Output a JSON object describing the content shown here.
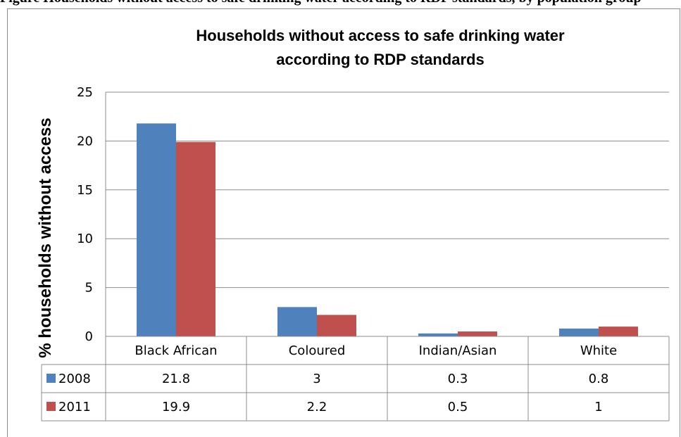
{
  "figure_caption_fragment": "Figure        Households without access to safe drinking water according to RDP standards, by population group",
  "chart_data": {
    "type": "bar",
    "title_line1": "Households without access to safe drinking water",
    "title_line2": "according to RDP standards",
    "title": "Households without access to safe drinking water according to RDP standards",
    "xlabel": "",
    "ylabel": "% households without access",
    "ylim": [
      0,
      25
    ],
    "yticks": [
      0,
      5,
      10,
      15,
      20,
      25
    ],
    "grid": true,
    "legend": "data-table",
    "categories": [
      "Black African",
      "Coloured",
      "Indian/Asian",
      "White"
    ],
    "series": [
      {
        "name": "2008",
        "color": "#4f81bd",
        "values": [
          21.8,
          3,
          0.3,
          0.8
        ]
      },
      {
        "name": "2011",
        "color": "#c0504d",
        "values": [
          19.9,
          2.2,
          0.5,
          1
        ]
      }
    ]
  }
}
